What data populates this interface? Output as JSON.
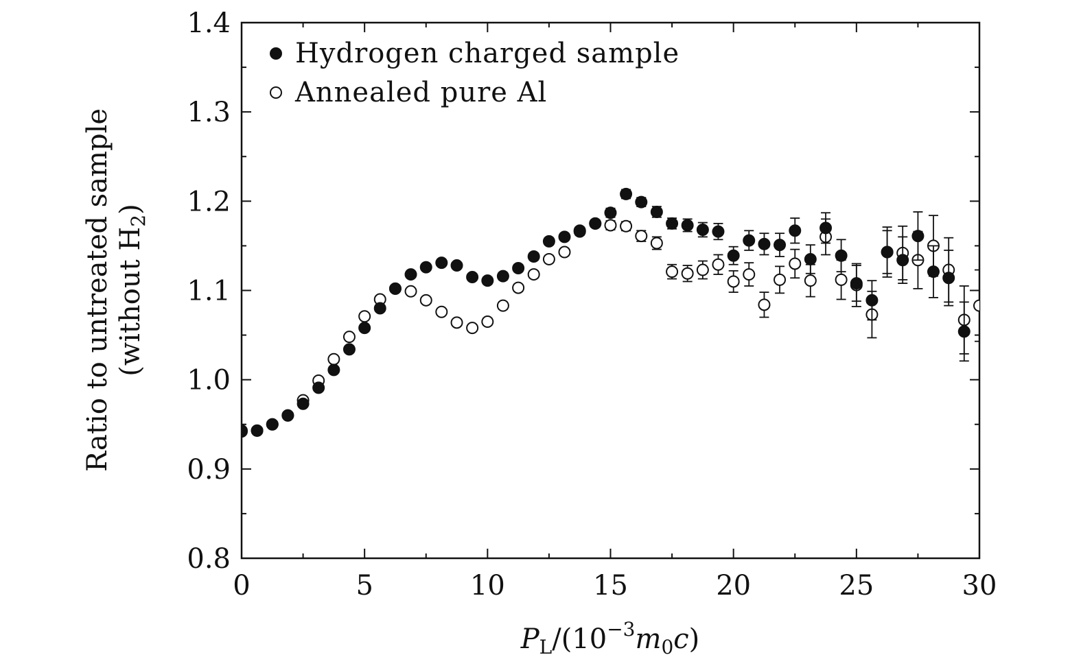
{
  "chart_data": {
    "type": "scatter",
    "title": "",
    "xlabel": "P_L/(10^-3 m_0 c)",
    "xlabel_parts": {
      "symbol": "P",
      "subscript": "L",
      "pre": "/(10",
      "exponent": "−3",
      "m": "m",
      "m_sub": "0",
      "c": "c",
      "close": ")"
    },
    "ylabel_line1": "Ratio to untreated sample",
    "ylabel_line2_pre": "(without H",
    "ylabel_line2_sub": "2",
    "ylabel_line2_post": ")",
    "xlim": [
      0,
      30
    ],
    "ylim": [
      0.8,
      1.4
    ],
    "xticks": [
      "0",
      "5",
      "10",
      "15",
      "20",
      "25",
      "30"
    ],
    "yticks": [
      "0.8",
      "0.9",
      "1.0",
      "1.1",
      "1.2",
      "1.3",
      "1.4"
    ],
    "grid": false,
    "legend_position": "top-left",
    "series": [
      {
        "name": "Hydrogen charged sample",
        "marker": "filled-circle",
        "color": "#111111",
        "x": [
          0.0,
          0.63,
          1.25,
          1.88,
          2.5,
          3.13,
          3.75,
          4.38,
          5.0,
          5.63,
          6.25,
          6.88,
          7.5,
          8.13,
          8.75,
          9.38,
          10.0,
          10.63,
          11.25,
          11.88,
          12.5,
          13.13,
          13.75,
          14.38,
          15.0,
          15.63,
          16.25,
          16.88,
          17.5,
          18.13,
          18.75,
          19.38,
          20.0,
          20.63,
          21.25,
          21.88,
          22.5,
          23.13,
          23.75,
          24.38,
          25.0,
          25.63,
          26.25,
          26.88,
          27.5,
          28.13,
          28.75,
          29.38
        ],
        "y": [
          0.943,
          0.943,
          0.95,
          0.96,
          0.973,
          0.991,
          1.011,
          1.034,
          1.058,
          1.08,
          1.102,
          1.118,
          1.126,
          1.131,
          1.128,
          1.115,
          1.111,
          1.116,
          1.125,
          1.138,
          1.155,
          1.16,
          1.167,
          1.175,
          1.187,
          1.208,
          1.199,
          1.188,
          1.175,
          1.173,
          1.168,
          1.166,
          1.139,
          1.156,
          1.152,
          1.151,
          1.167,
          1.135,
          1.17,
          1.139,
          1.108,
          1.089,
          1.143,
          1.134,
          1.161,
          1.121,
          1.114,
          1.054
        ],
        "err": [
          0.003,
          0.003,
          0.003,
          0.003,
          0.003,
          0.003,
          0.003,
          0.003,
          0.003,
          0.003,
          0.003,
          0.003,
          0.003,
          0.003,
          0.003,
          0.003,
          0.004,
          0.004,
          0.004,
          0.004,
          0.004,
          0.004,
          0.004,
          0.004,
          0.005,
          0.005,
          0.005,
          0.006,
          0.006,
          0.007,
          0.008,
          0.009,
          0.01,
          0.011,
          0.012,
          0.013,
          0.014,
          0.016,
          0.017,
          0.018,
          0.02,
          0.022,
          0.024,
          0.026,
          0.027,
          0.029,
          0.031,
          0.033
        ]
      },
      {
        "name": "Annealed pure Al",
        "marker": "open-circle",
        "color": "#111111",
        "x": [
          0.0,
          0.63,
          1.25,
          1.88,
          2.5,
          3.13,
          3.75,
          4.38,
          5.0,
          5.63,
          6.25,
          6.88,
          7.5,
          8.13,
          8.75,
          9.38,
          10.0,
          10.63,
          11.25,
          11.88,
          12.5,
          13.13,
          13.75,
          14.38,
          15.0,
          15.63,
          16.25,
          16.88,
          17.5,
          18.13,
          18.75,
          19.38,
          20.0,
          20.63,
          21.25,
          21.88,
          22.5,
          23.13,
          23.75,
          24.38,
          25.0,
          25.63,
          26.25,
          26.88,
          27.5,
          28.13,
          28.75,
          29.38,
          30.0
        ],
        "y": [
          0.942,
          0.943,
          0.95,
          0.96,
          0.977,
          0.999,
          1.023,
          1.048,
          1.071,
          1.09,
          1.102,
          1.099,
          1.089,
          1.076,
          1.064,
          1.058,
          1.065,
          1.083,
          1.103,
          1.118,
          1.135,
          1.143,
          1.166,
          1.175,
          1.173,
          1.172,
          1.161,
          1.153,
          1.121,
          1.119,
          1.123,
          1.129,
          1.11,
          1.118,
          1.084,
          1.112,
          1.13,
          1.111,
          1.16,
          1.112,
          1.106,
          1.073,
          1.143,
          1.142,
          1.134,
          1.15,
          1.123,
          1.067,
          1.083
        ],
        "err": [
          0.003,
          0.003,
          0.003,
          0.003,
          0.003,
          0.003,
          0.003,
          0.003,
          0.003,
          0.003,
          0.003,
          0.003,
          0.003,
          0.003,
          0.003,
          0.003,
          0.004,
          0.004,
          0.004,
          0.004,
          0.004,
          0.004,
          0.004,
          0.004,
          0.005,
          0.005,
          0.006,
          0.007,
          0.008,
          0.009,
          0.01,
          0.011,
          0.012,
          0.013,
          0.014,
          0.015,
          0.016,
          0.018,
          0.02,
          0.022,
          0.024,
          0.026,
          0.028,
          0.03,
          0.032,
          0.034,
          0.036,
          0.038,
          0.04
        ]
      }
    ]
  }
}
